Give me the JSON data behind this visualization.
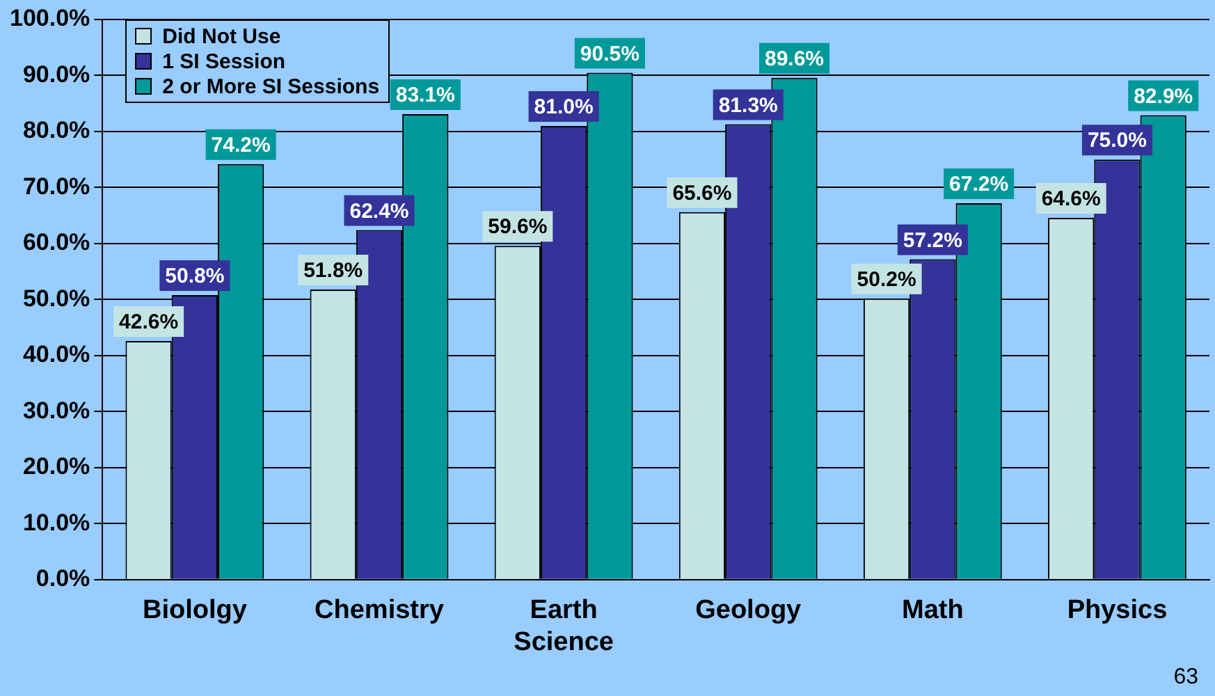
{
  "chart_data": {
    "type": "bar",
    "categories": [
      "Biololgy",
      "Chemistry",
      "Earth Science",
      "Geology",
      "Math",
      "Physics"
    ],
    "series": [
      {
        "name": "Did Not Use",
        "color": "#c4e4e4",
        "values": [
          42.6,
          51.8,
          59.6,
          65.6,
          50.2,
          64.6
        ],
        "value_labels": [
          "42.6%",
          "51.8%",
          "59.6%",
          "65.6%",
          "50.2%",
          "64.6%"
        ]
      },
      {
        "name": "1 SI Session",
        "color": "#333399",
        "values": [
          50.8,
          62.4,
          81.0,
          81.3,
          57.2,
          75.0
        ],
        "value_labels": [
          "50.8%",
          "62.4%",
          "81.0%",
          "81.3%",
          "57.2%",
          "75.0%"
        ]
      },
      {
        "name": "2 or More SI Sessions",
        "color": "#009999",
        "values": [
          74.2,
          83.1,
          90.5,
          89.6,
          67.2,
          82.9
        ],
        "value_labels": [
          "74.2%",
          "83.1%",
          "90.5%",
          "89.6%",
          "67.2%",
          "82.9%"
        ]
      }
    ],
    "ylim": [
      0,
      100
    ],
    "yticks": [
      {
        "value": 0,
        "label": "0.0%"
      },
      {
        "value": 10,
        "label": "10.0%"
      },
      {
        "value": 20,
        "label": "20.0%"
      },
      {
        "value": 30,
        "label": "30.0%"
      },
      {
        "value": 40,
        "label": "40.0%"
      },
      {
        "value": 50,
        "label": "50.0%"
      },
      {
        "value": 60,
        "label": "60.0%"
      },
      {
        "value": 70,
        "label": "70.0%"
      },
      {
        "value": 80,
        "label": "80.0%"
      },
      {
        "value": 90,
        "label": "90.0%"
      },
      {
        "value": 100,
        "label": "100.0%"
      }
    ],
    "grid": "y",
    "legend": "top left",
    "annotations": [
      "63"
    ]
  }
}
